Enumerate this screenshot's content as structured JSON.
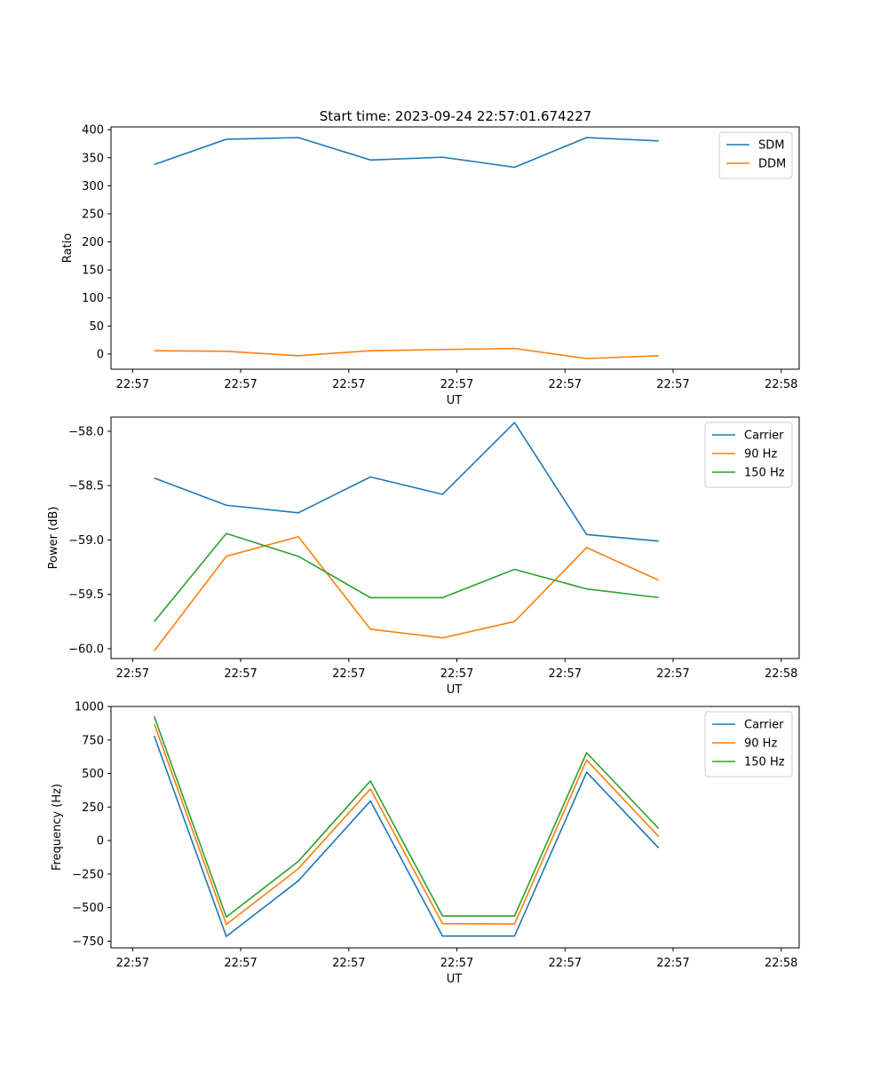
{
  "figure_title": "Start time: 2023-09-24 22:57:01.674227",
  "colors": {
    "blue": "#1f77b4",
    "orange": "#ff7f0e",
    "green": "#2ca02c"
  },
  "chart_data": [
    {
      "type": "line",
      "title": "Start time: 2023-09-24 22:57:01.674227",
      "xlabel": "UT",
      "ylabel": "Ratio",
      "xlim": [
        -0.6,
        8.95
      ],
      "ylim": [
        -27,
        405
      ],
      "x_ticks": [
        -0.3,
        1.2,
        2.7,
        4.2,
        5.7,
        7.2,
        8.7
      ],
      "x_tick_labels": [
        "22:57",
        "22:57",
        "22:57",
        "22:57",
        "22:57",
        "22:57",
        "22:58"
      ],
      "y_ticks": [
        0,
        50,
        100,
        150,
        200,
        250,
        300,
        350,
        400
      ],
      "y_tick_labels": [
        "0",
        "50",
        "100",
        "150",
        "200",
        "250",
        "300",
        "350",
        "400"
      ],
      "legend_position": "top-right",
      "x": [
        0,
        1,
        2,
        3,
        4,
        5,
        6,
        7
      ],
      "series": [
        {
          "name": "SDM",
          "color": "#1f77b4",
          "values": [
            338,
            383,
            386,
            346,
            351,
            333,
            386,
            380
          ]
        },
        {
          "name": "DDM",
          "color": "#ff7f0e",
          "values": [
            6,
            5,
            -3,
            6,
            8,
            10,
            -8,
            -3
          ]
        }
      ]
    },
    {
      "type": "line",
      "xlabel": "UT",
      "ylabel": "Power (dB)",
      "xlim": [
        -0.6,
        8.95
      ],
      "ylim": [
        -60.09,
        -57.87
      ],
      "x_ticks": [
        -0.3,
        1.2,
        2.7,
        4.2,
        5.7,
        7.2,
        8.7
      ],
      "x_tick_labels": [
        "22:57",
        "22:57",
        "22:57",
        "22:57",
        "22:57",
        "22:57",
        "22:58"
      ],
      "y_ticks": [
        -60.0,
        -59.5,
        -59.0,
        -58.5,
        -58.0
      ],
      "y_tick_labels": [
        "−60.0",
        "−59.5",
        "−59.0",
        "−58.5",
        "−58.0"
      ],
      "legend_position": "top-right",
      "x": [
        0,
        1,
        2,
        3,
        4,
        5,
        6,
        7
      ],
      "series": [
        {
          "name": "Carrier",
          "color": "#1f77b4",
          "values": [
            -58.43,
            -58.68,
            -58.75,
            -58.42,
            -58.58,
            -57.92,
            -58.95,
            -59.01
          ]
        },
        {
          "name": "90 Hz",
          "color": "#ff7f0e",
          "values": [
            -60.02,
            -59.15,
            -58.97,
            -59.82,
            -59.9,
            -59.75,
            -59.07,
            -59.37
          ]
        },
        {
          "name": "150 Hz",
          "color": "#2ca02c",
          "values": [
            -59.75,
            -58.94,
            -59.15,
            -59.53,
            -59.53,
            -59.27,
            -59.45,
            -59.53
          ]
        }
      ]
    },
    {
      "type": "line",
      "xlabel": "UT",
      "ylabel": "Frequency (Hz)",
      "xlim": [
        -0.6,
        8.95
      ],
      "ylim": [
        -800,
        1000
      ],
      "x_ticks": [
        -0.3,
        1.2,
        2.7,
        4.2,
        5.7,
        7.2,
        8.7
      ],
      "x_tick_labels": [
        "22:57",
        "22:57",
        "22:57",
        "22:57",
        "22:57",
        "22:57",
        "22:58"
      ],
      "y_ticks": [
        -750,
        -500,
        -250,
        0,
        250,
        500,
        750,
        1000
      ],
      "y_tick_labels": [
        "−750",
        "−500",
        "−250",
        "0",
        "250",
        "500",
        "750",
        "1000"
      ],
      "legend_position": "top-right",
      "x": [
        0,
        1,
        2,
        3,
        4,
        5,
        6,
        7
      ],
      "series": [
        {
          "name": "Carrier",
          "color": "#1f77b4",
          "values": [
            780,
            -715,
            -300,
            295,
            -712,
            -712,
            510,
            -55
          ]
        },
        {
          "name": "90 Hz",
          "color": "#ff7f0e",
          "values": [
            870,
            -625,
            -210,
            385,
            -620,
            -622,
            600,
            30
          ]
        },
        {
          "name": "150 Hz",
          "color": "#2ca02c",
          "values": [
            925,
            -570,
            -155,
            445,
            -562,
            -562,
            655,
            90
          ]
        }
      ]
    }
  ]
}
